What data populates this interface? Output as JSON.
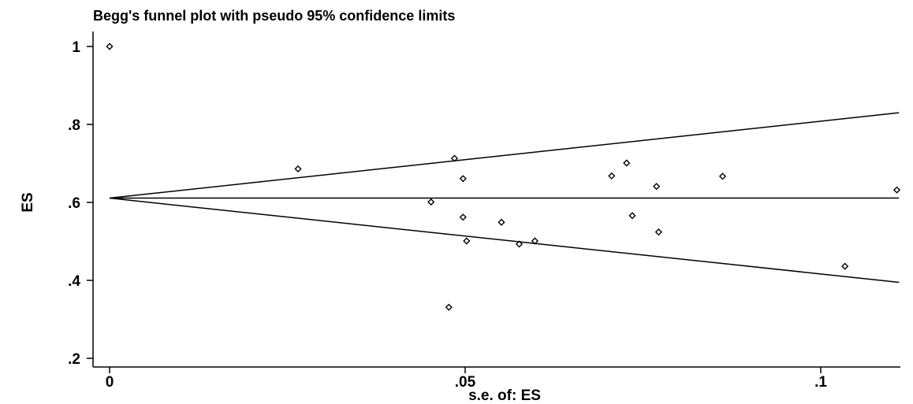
{
  "chart_data": {
    "type": "scatter",
    "title": "Begg's funnel plot with pseudo 95% confidence limits",
    "xlabel": "s.e. of: ES",
    "ylabel": "ES",
    "xlim": [
      0,
      0.112
    ],
    "ylim": [
      0.18,
      1.02
    ],
    "xticks": [
      {
        "value": 0,
        "label": "0"
      },
      {
        "value": 0.05,
        "label": ".05"
      },
      {
        "value": 0.1,
        "label": ".1"
      }
    ],
    "yticks": [
      {
        "value": 0.2,
        "label": ".2"
      },
      {
        "value": 0.4,
        "label": ".4"
      },
      {
        "value": 0.6,
        "label": ".6"
      },
      {
        "value": 0.8,
        "label": ".8"
      },
      {
        "value": 1.0,
        "label": "1"
      }
    ],
    "pooled_estimate": 0.611,
    "pseudo_ci_line_endpoints": {
      "upper": [
        [
          0,
          0.611
        ],
        [
          0.111,
          0.83
        ]
      ],
      "lower": [
        [
          0,
          0.611
        ],
        [
          0.111,
          0.395
        ]
      ]
    },
    "grid": false,
    "series": [
      {
        "points": [
          {
            "x": 0.0,
            "y": 1.0
          },
          {
            "x": 0.0265,
            "y": 0.686
          },
          {
            "x": 0.0452,
            "y": 0.601
          },
          {
            "x": 0.0477,
            "y": 0.331
          },
          {
            "x": 0.0485,
            "y": 0.713
          },
          {
            "x": 0.0497,
            "y": 0.661
          },
          {
            "x": 0.0497,
            "y": 0.562
          },
          {
            "x": 0.0502,
            "y": 0.501
          },
          {
            "x": 0.0551,
            "y": 0.549
          },
          {
            "x": 0.0576,
            "y": 0.493
          },
          {
            "x": 0.0598,
            "y": 0.501
          },
          {
            "x": 0.0706,
            "y": 0.668
          },
          {
            "x": 0.0727,
            "y": 0.701
          },
          {
            "x": 0.0735,
            "y": 0.566
          },
          {
            "x": 0.0769,
            "y": 0.641
          },
          {
            "x": 0.0772,
            "y": 0.524
          },
          {
            "x": 0.0862,
            "y": 0.667
          },
          {
            "x": 0.1034,
            "y": 0.436
          },
          {
            "x": 0.1107,
            "y": 0.632
          }
        ]
      }
    ]
  }
}
